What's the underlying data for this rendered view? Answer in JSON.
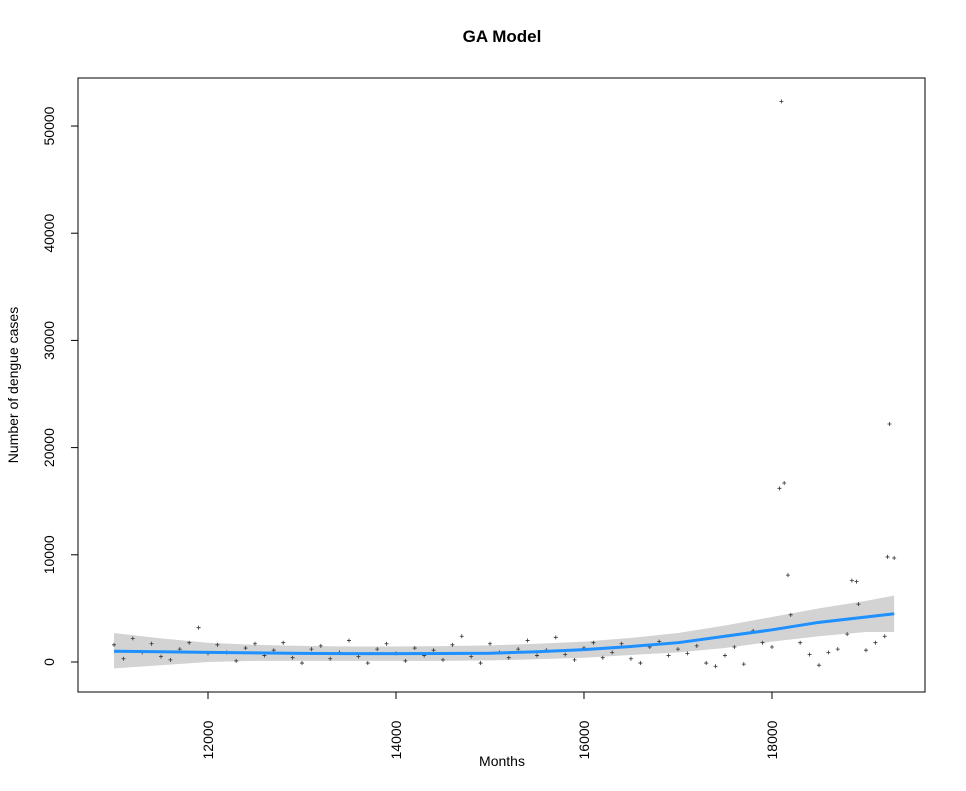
{
  "chart_data": {
    "type": "scatter",
    "title": "GA Model",
    "x_label": "Months",
    "y_label": "Number of dengue cases",
    "xlim": [
      10617,
      19628
    ],
    "ylim": [
      -2800,
      54480
    ],
    "xticks": [
      12000,
      14000,
      16000,
      18000
    ],
    "yticks": [
      0,
      10000,
      20000,
      30000,
      40000,
      50000
    ],
    "point_color": "#333333",
    "x": [
      11000,
      11100,
      11200,
      11300,
      11400,
      11500,
      11600,
      11700,
      11800,
      11900,
      12000,
      12100,
      12200,
      12300,
      12400,
      12500,
      12600,
      12700,
      12800,
      12900,
      13000,
      13100,
      13200,
      13300,
      13400,
      13500,
      13600,
      13700,
      13800,
      13900,
      14000,
      14100,
      14200,
      14300,
      14400,
      14500,
      14600,
      14700,
      14800,
      14900,
      15000,
      15100,
      15200,
      15300,
      15400,
      15500,
      15600,
      15700,
      15800,
      15900,
      16000,
      16100,
      16200,
      16300,
      16400,
      16500,
      16600,
      16700,
      16800,
      16900,
      17000,
      17100,
      17200,
      17300,
      17400,
      17500,
      17600,
      17700,
      17800,
      17900,
      18000,
      18080,
      18100,
      18130,
      18170,
      18200,
      18300,
      18400,
      18500,
      18600,
      18700,
      18800,
      18850,
      18900,
      18920,
      19000,
      19100,
      19200,
      19230,
      19250,
      19300
    ],
    "values": [
      1600,
      300,
      2200,
      900,
      1700,
      500,
      200,
      1200,
      1800,
      3200,
      800,
      1600,
      900,
      100,
      1300,
      1700,
      600,
      1100,
      1800,
      400,
      -100,
      1200,
      1500,
      300,
      900,
      2000,
      500,
      -100,
      1200,
      1700,
      800,
      100,
      1300,
      600,
      1100,
      200,
      1600,
      2400,
      500,
      -100,
      1700,
      900,
      400,
      1200,
      2000,
      600,
      1100,
      2300,
      700,
      200,
      1300,
      1800,
      400,
      900,
      1700,
      300,
      -100,
      1400,
      1900,
      600,
      1200,
      800,
      1500,
      -100,
      -400,
      600,
      1400,
      -200,
      2900,
      1800,
      1400,
      16200,
      52300,
      16700,
      8100,
      4400,
      1800,
      700,
      -300,
      900,
      1200,
      2600,
      7600,
      7500,
      5400,
      1100,
      1800,
      2400,
      9800,
      22200,
      9700
    ],
    "fit": {
      "color": "#1e90ff",
      "band_color": "#d3d3d3",
      "x": [
        11000,
        11500,
        12000,
        12500,
        13000,
        13500,
        14000,
        14500,
        15000,
        15500,
        16000,
        16500,
        17000,
        17500,
        18000,
        18500,
        19000,
        19300
      ],
      "values": [
        1000,
        950,
        900,
        850,
        800,
        780,
        780,
        790,
        820,
        950,
        1150,
        1450,
        1800,
        2400,
        3000,
        3700,
        4200,
        4500
      ],
      "lower": [
        -600,
        -300,
        0,
        100,
        100,
        100,
        100,
        100,
        150,
        250,
        400,
        650,
        900,
        1300,
        1900,
        2400,
        2800,
        2800
      ],
      "upper": [
        2700,
        2200,
        1800,
        1600,
        1500,
        1450,
        1450,
        1480,
        1550,
        1700,
        1900,
        2250,
        2700,
        3400,
        4200,
        5000,
        5700,
        6200
      ]
    }
  }
}
